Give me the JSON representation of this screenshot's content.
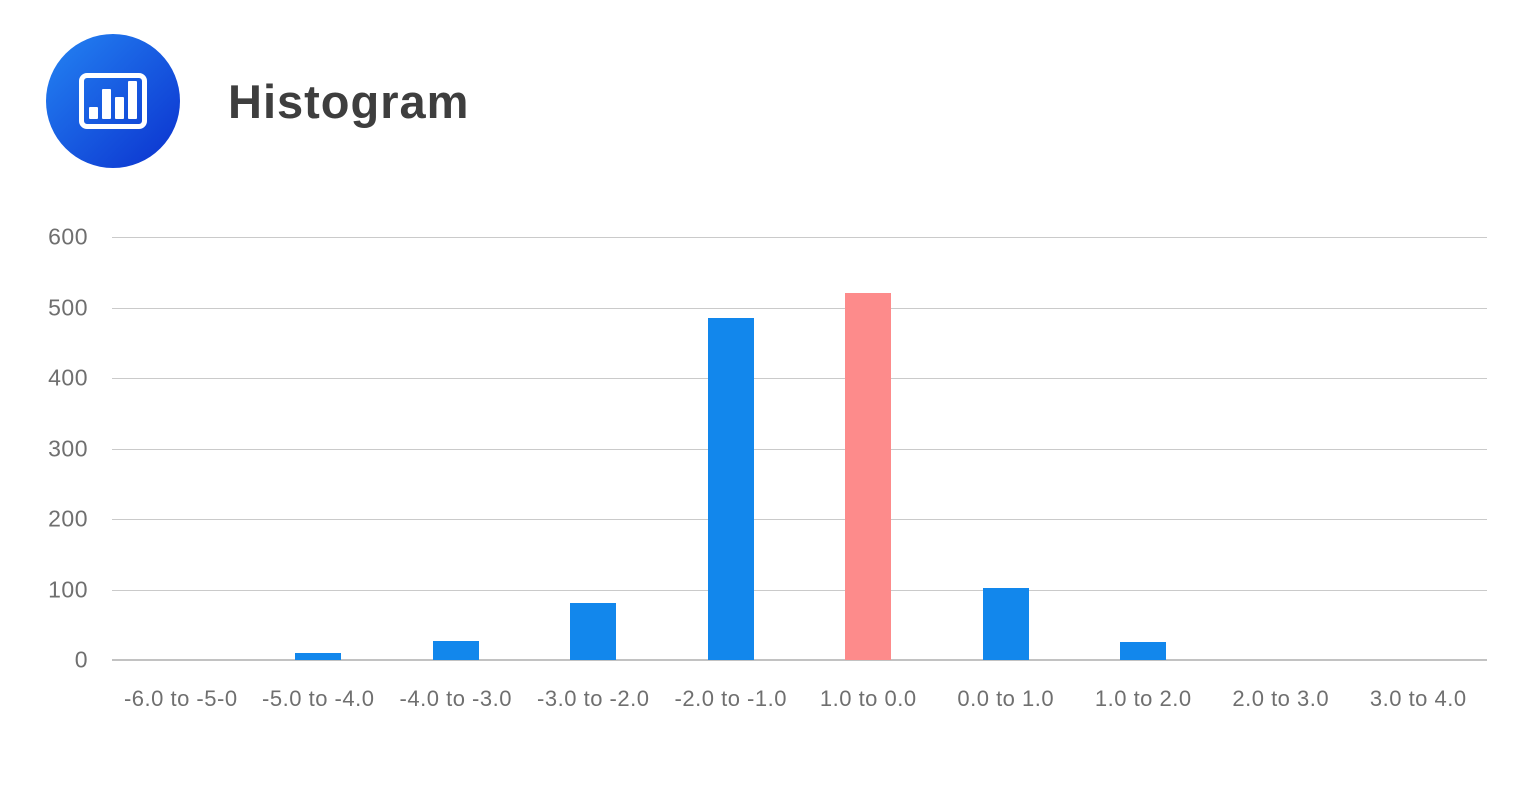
{
  "header": {
    "title": "Histogram",
    "icon": "bar-chart-icon"
  },
  "colors": {
    "bar_default": "#1287EC",
    "bar_highlight": "#FD8B8B",
    "gridline": "#CACACA",
    "axis_text": "#6F6F6F",
    "title_text": "#3E3E3E",
    "icon_gradient_start": "#2484F3",
    "icon_gradient_end": "#0B31CE"
  },
  "chart_data": {
    "type": "bar",
    "title": "Histogram",
    "categories": [
      "-6.0 to -5-0",
      "-5.0 to -4.0",
      "-4.0 to -3.0",
      "-3.0 to -2.0",
      "-2.0 to -1.0",
      "1.0 to 0.0",
      "0.0 to 1.0",
      "1.0 to 2.0",
      "2.0 to 3.0",
      "3.0 to 4.0"
    ],
    "values": [
      0,
      10,
      27,
      81,
      485,
      520,
      102,
      26,
      0,
      0
    ],
    "highlight_index": 5,
    "highlight_category": "1.0 to 0.0",
    "xlabel": "",
    "ylabel": "",
    "ylim": [
      0,
      600
    ],
    "yticks": [
      0,
      100,
      200,
      300,
      400,
      500,
      600
    ],
    "grid": true,
    "legend_position": "none"
  }
}
